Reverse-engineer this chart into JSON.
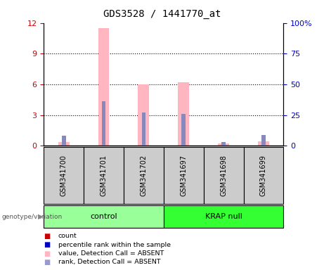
{
  "title": "GDS3528 / 1441770_at",
  "samples": [
    "GSM341700",
    "GSM341701",
    "GSM341702",
    "GSM341697",
    "GSM341698",
    "GSM341699"
  ],
  "ylim_left": [
    0,
    12
  ],
  "ylim_right": [
    0,
    100
  ],
  "yticks_left": [
    0,
    3,
    6,
    9,
    12
  ],
  "yticks_right": [
    0,
    25,
    50,
    75,
    100
  ],
  "yticklabels_right": [
    "0",
    "25",
    "50",
    "75",
    "100%"
  ],
  "pink_bar_values": [
    0.35,
    11.5,
    6.0,
    6.2,
    0.2,
    0.45
  ],
  "blue_bar_values": [
    8.0,
    36.0,
    27.0,
    26.0,
    3.0,
    9.0
  ],
  "red_bar_values": [
    0.35,
    0.0,
    0.0,
    0.0,
    0.0,
    0.4
  ],
  "pink_color": "#FFB6C1",
  "blue_color": "#8888BB",
  "red_color": "#CC0000",
  "control_color": "#99FF99",
  "krap_color": "#33FF33",
  "background_color": "#ffffff",
  "axis_label_color_left": "#CC0000",
  "axis_label_color_right": "#0000CC",
  "legend_items": [
    {
      "label": "count",
      "color": "#CC0000"
    },
    {
      "label": "percentile rank within the sample",
      "color": "#0000CC"
    },
    {
      "label": "value, Detection Call = ABSENT",
      "color": "#FFB6C1"
    },
    {
      "label": "rank, Detection Call = ABSENT",
      "color": "#9999CC"
    }
  ]
}
